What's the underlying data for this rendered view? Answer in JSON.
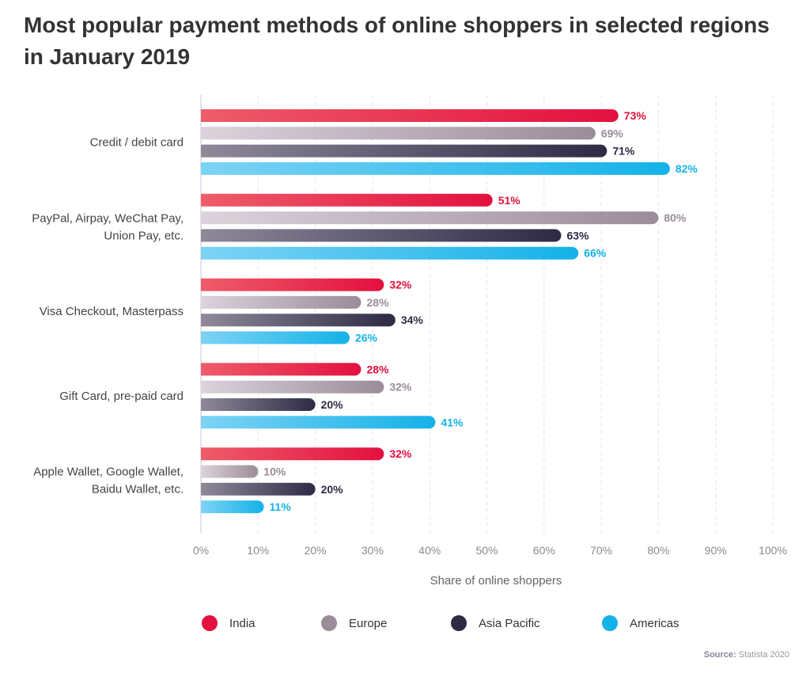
{
  "title": "Most popular payment methods of online shoppers in selected regions in January 2019",
  "source_label": "Source:",
  "source_text": "Statista 2020",
  "colors": {
    "India": "#e3103f",
    "Europe": "#9a8c98",
    "Asia Pacific": "#2e2a45",
    "Americas": "#14b2e8"
  },
  "chart_data": {
    "type": "bar",
    "orientation": "horizontal",
    "categories": [
      [
        "Credit / debit card"
      ],
      [
        "PayPal, Airpay, WeChat Pay,",
        "Union Pay, etc."
      ],
      [
        "Visa Checkout, Masterpass"
      ],
      [
        "Gift Card, pre-paid card"
      ],
      [
        "Apple Wallet, Google Wallet,",
        "Baidu Wallet, etc."
      ]
    ],
    "series": [
      {
        "name": "India",
        "values": [
          73,
          51,
          32,
          28,
          32
        ]
      },
      {
        "name": "Europe",
        "values": [
          69,
          80,
          28,
          32,
          10
        ]
      },
      {
        "name": "Asia Pacific",
        "values": [
          71,
          63,
          34,
          20,
          20
        ]
      },
      {
        "name": "Americas",
        "values": [
          82,
          66,
          26,
          41,
          11
        ]
      }
    ],
    "value_suffix": "%",
    "xlabel": "Share of online shoppers",
    "xlim": [
      0,
      100
    ],
    "xticks": [
      "0%",
      "10%",
      "20%",
      "30%",
      "40%",
      "50%",
      "60%",
      "70%",
      "80%",
      "90%",
      "100%"
    ],
    "grid": true,
    "legend_position": "bottom"
  }
}
